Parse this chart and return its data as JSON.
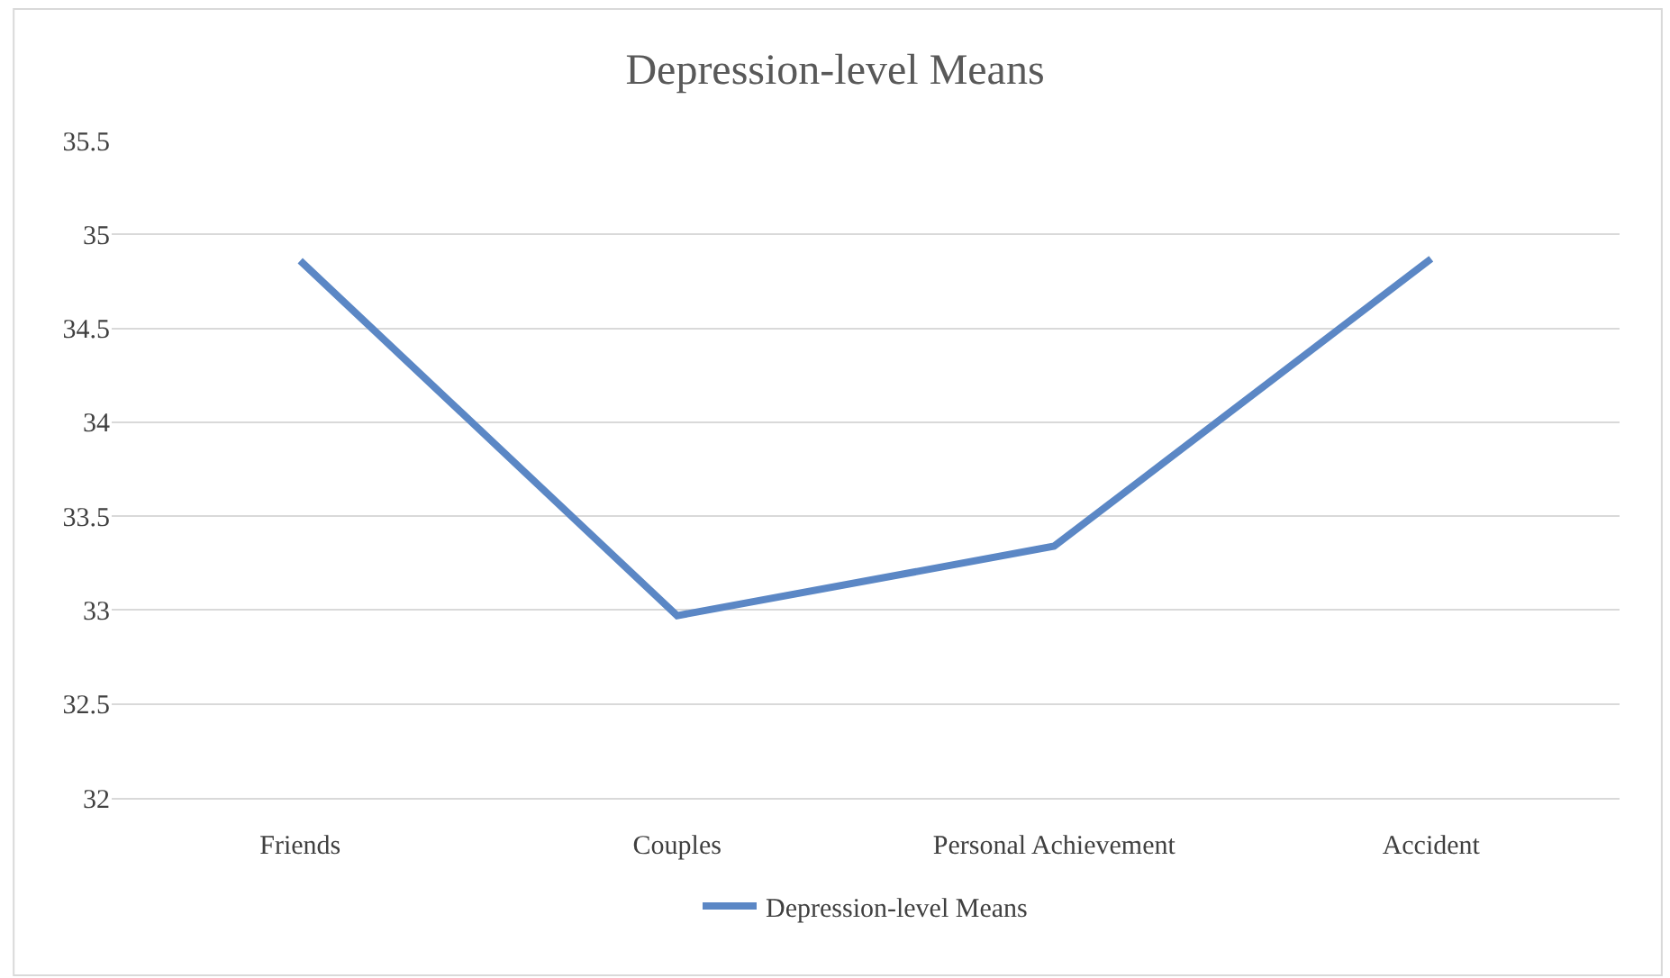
{
  "chart_data": {
    "type": "line",
    "title": "Depression-level Means",
    "categories": [
      "Friends",
      "Couples",
      "Personal Achievement",
      "Accident"
    ],
    "series": [
      {
        "name": "Depression-level Means",
        "color": "#5b87c5",
        "values": [
          34.86,
          32.97,
          33.34,
          34.87
        ]
      }
    ],
    "ylim": [
      32,
      35.5
    ],
    "yticks": [
      32,
      32.5,
      33,
      33.5,
      34,
      34.5,
      35,
      35.5
    ],
    "grid": "y",
    "legend": "bottom",
    "marker": "none",
    "line_style": "solid"
  }
}
